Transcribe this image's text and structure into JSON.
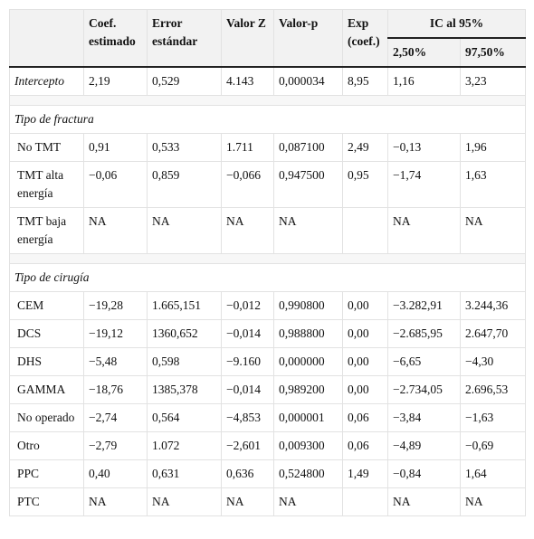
{
  "header": {
    "columns": [
      "Coef. estimado",
      "Error estándar",
      "Valor Z",
      "Valor-p",
      "Exp (coef.)"
    ],
    "ci_group": "IC al 95%",
    "ci_columns": [
      "2,50%",
      "97,50%"
    ]
  },
  "rows": [
    [
      "Intercepto",
      "2,19",
      "0,529",
      "4.143",
      "0,000034",
      "8,95",
      "1,16",
      "3,23"
    ],
    [
      "Tipo de fractura"
    ],
    [
      "No TMT",
      "0,91",
      "0,533",
      "1.711",
      "0,087100",
      "2,49",
      "−0,13",
      "1,96"
    ],
    [
      "TMT alta energía",
      "−0,06",
      "0,859",
      "−0,066",
      "0,947500",
      "0,95",
      "−1,74",
      "1,63"
    ],
    [
      "TMT baja energía",
      "NA",
      "NA",
      "NA",
      "NA",
      null,
      "NA",
      "NA"
    ],
    [
      "Tipo de cirugía"
    ],
    [
      "CEM",
      "−19,28",
      "1.665,151",
      "−0,012",
      "0,990800",
      "0,00",
      "−3.282,91",
      "3.244,36"
    ],
    [
      "DCS",
      "−19,12",
      "1360,652",
      "−0,014",
      "0,988800",
      "0,00",
      "−2.685,95",
      "2.647,70"
    ],
    [
      "DHS",
      "−5,48",
      "0,598",
      "−9.160",
      "0,000000",
      "0,00",
      "−6,65",
      "−4,30"
    ],
    [
      "GAMMA",
      "−18,76",
      "1385,378",
      "−0,014",
      "0,989200",
      "0,00",
      "−2.734,05",
      "2.696,53"
    ],
    [
      "No operado",
      "−2,74",
      "0,564",
      "−4,853",
      "0,000001",
      "0,06",
      "−3,84",
      "−1,63"
    ],
    [
      "Otro",
      "−2,79",
      "1.072",
      "−2,601",
      "0,009300",
      "0,06",
      "−4,89",
      "−0,69"
    ],
    [
      "PPC",
      "0,40",
      "0,631",
      "0,636",
      "0,524800",
      "1,49",
      "−0,84",
      "1,64"
    ],
    [
      "PTC",
      "NA",
      "NA",
      "NA",
      "NA",
      null,
      "NA",
      "NA"
    ]
  ]
}
